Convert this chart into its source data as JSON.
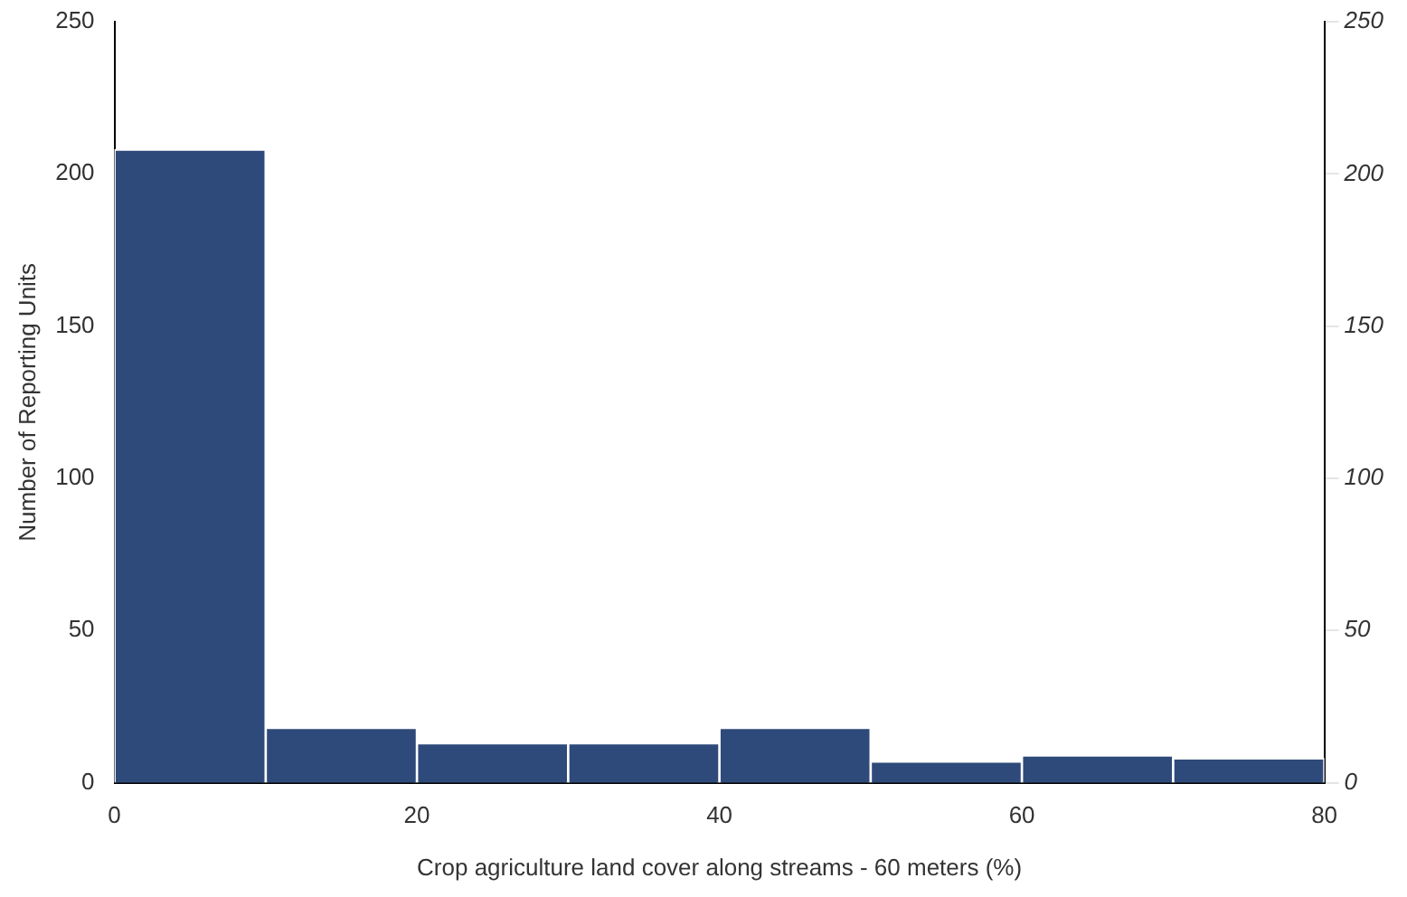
{
  "chart_data": {
    "type": "histogram",
    "xlabel": "Crop agriculture land cover along streams - 60 meters (%)",
    "ylabel": "Number of Reporting Units",
    "bins": [
      0,
      10,
      20,
      30,
      40,
      50,
      60,
      70,
      80
    ],
    "values": [
      208,
      18,
      13,
      13,
      18,
      7,
      9,
      8
    ],
    "color": "#2e4a7a",
    "xlim": [
      0,
      80
    ],
    "xticks": [
      0,
      20,
      40,
      60,
      80
    ],
    "ylim": [
      0,
      250
    ],
    "yticks": [
      0,
      50,
      100,
      150,
      200,
      250
    ],
    "y2lim": [
      0,
      250
    ],
    "y2ticks": [
      0,
      50,
      100,
      150,
      200,
      250
    ],
    "grid": false,
    "legend": false
  }
}
